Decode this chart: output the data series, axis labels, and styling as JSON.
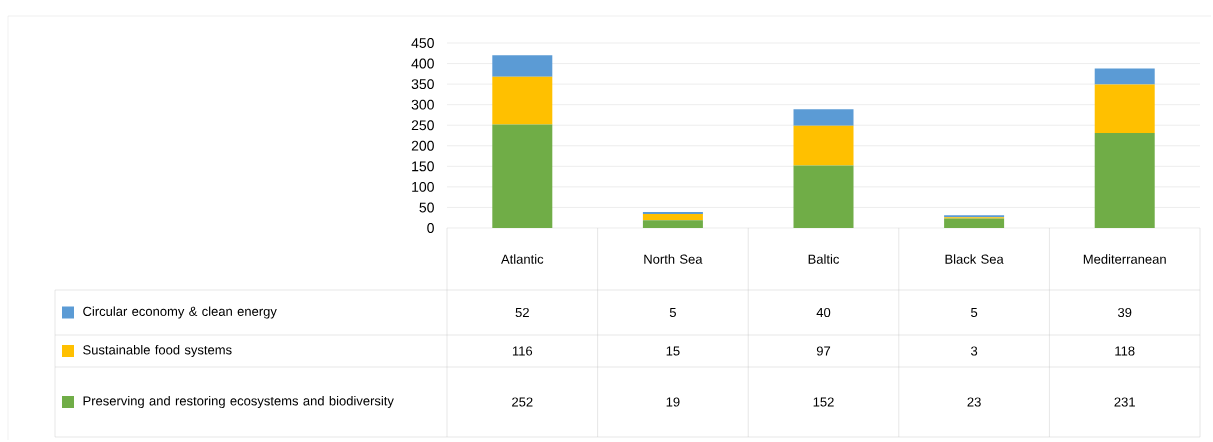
{
  "chart_data": {
    "type": "bar",
    "stacked": true,
    "categories": [
      "Atlantic",
      "North Sea",
      "Baltic",
      "Black Sea",
      "Mediterranean"
    ],
    "series": [
      {
        "name": "Preserving and restoring ecosystems and biodiversity",
        "color": "#70ad47",
        "values": [
          252,
          19,
          152,
          23,
          231
        ]
      },
      {
        "name": "Sustainable food systems",
        "color": "#ffc000",
        "values": [
          116,
          15,
          97,
          3,
          118
        ]
      },
      {
        "name": "Circular economy & clean energy",
        "color": "#5b9bd5",
        "values": [
          52,
          5,
          40,
          5,
          39
        ]
      }
    ],
    "ylim": [
      0,
      450
    ],
    "yticks": [
      0,
      50,
      100,
      150,
      200,
      250,
      300,
      350,
      400,
      450
    ],
    "grid": "y",
    "legend": "bottom",
    "data_labels": true
  }
}
